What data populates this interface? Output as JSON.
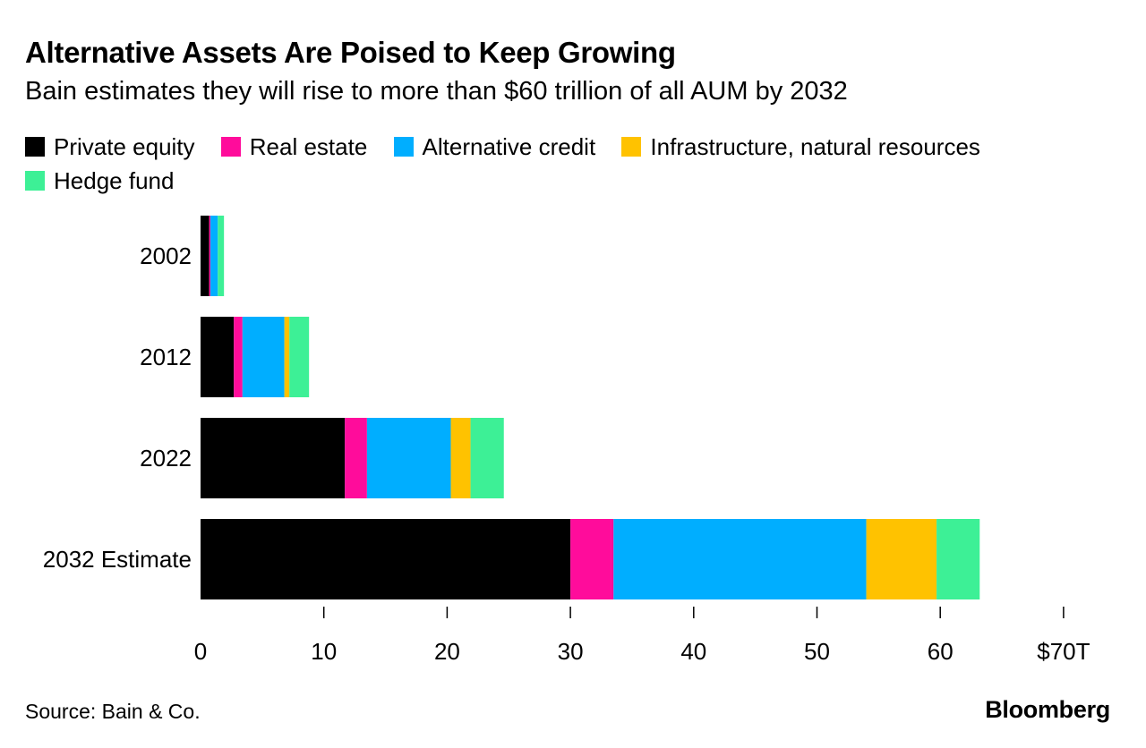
{
  "chart_data": {
    "type": "bar",
    "orientation": "horizontal",
    "stacked": true,
    "title": "Alternative Assets Are Poised to Keep Growing",
    "subtitle": "Bain estimates they will rise to more than $60 trillion of all AUM by 2032",
    "categories": [
      "2002",
      "2012",
      "2022",
      "2032 Estimate"
    ],
    "series": [
      {
        "name": "Private equity",
        "color": "#000000",
        "values": [
          0.7,
          2.7,
          11.7,
          30.0
        ]
      },
      {
        "name": "Real estate",
        "color": "#ff0c9b",
        "values": [
          0.1,
          0.7,
          1.8,
          3.5
        ]
      },
      {
        "name": "Alternative credit",
        "color": "#00aeff",
        "values": [
          0.6,
          3.4,
          6.8,
          20.5
        ]
      },
      {
        "name": "Infrastructure, natural resources",
        "color": "#ffc200",
        "values": [
          0.0,
          0.4,
          1.6,
          5.7
        ]
      },
      {
        "name": "Hedge fund",
        "color": "#3df096",
        "values": [
          0.5,
          1.6,
          2.7,
          3.5
        ]
      }
    ],
    "xlim": [
      0,
      70
    ],
    "xticks": [
      "0",
      "10",
      "20",
      "30",
      "40",
      "50",
      "60",
      "$70T"
    ],
    "xtick_values": [
      0,
      10,
      20,
      30,
      40,
      50,
      60,
      70
    ],
    "legend_position": "top",
    "grid": false
  },
  "source": "Source: Bain & Co.",
  "brand": "Bloomberg"
}
